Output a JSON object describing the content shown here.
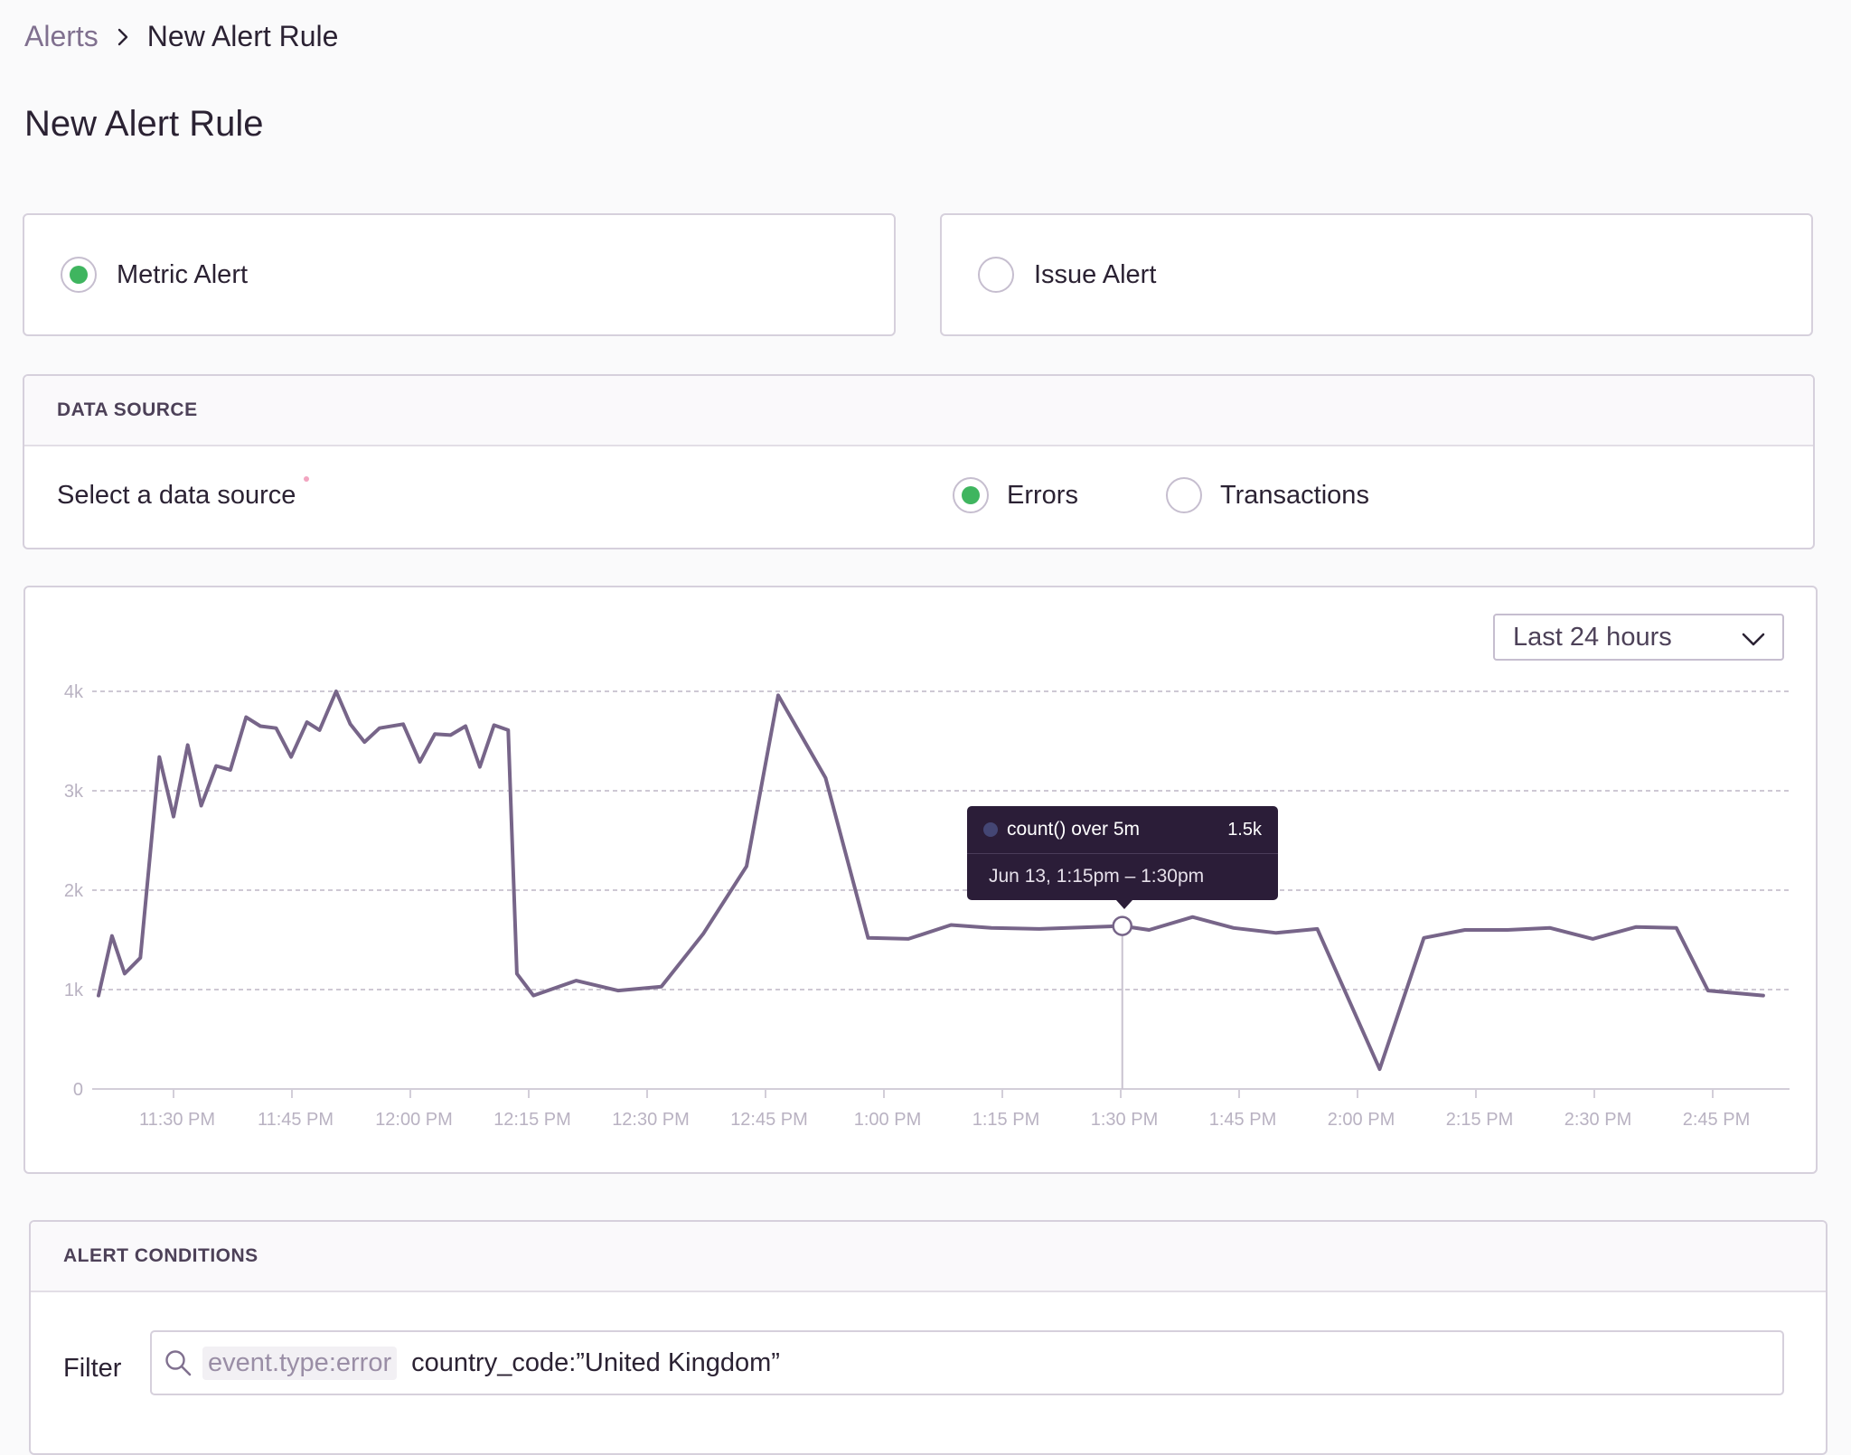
{
  "breadcrumb": {
    "parent": "Alerts",
    "current": "New Alert Rule"
  },
  "page_title": "New Alert Rule",
  "alert_types": [
    {
      "label": "Metric Alert",
      "selected": true
    },
    {
      "label": "Issue Alert",
      "selected": false
    }
  ],
  "data_source": {
    "header": "DATA SOURCE",
    "label": "Select a data source",
    "options": [
      {
        "label": "Errors",
        "selected": true
      },
      {
        "label": "Transactions",
        "selected": false
      }
    ]
  },
  "time_range": {
    "selected": "Last 24 hours"
  },
  "tooltip": {
    "series": "count() over 5m",
    "value": "1.5k",
    "range": "Jun 13, 1:15pm – 1:30pm"
  },
  "colors": {
    "accent_green": "#3fb55f",
    "line": "#776589",
    "tooltip_bg": "#2b1d38"
  },
  "chart_data": {
    "type": "line",
    "y_ticks": [
      "0",
      "1k",
      "2k",
      "3k",
      "4k"
    ],
    "ylim": [
      0,
      4000
    ],
    "x_ticks": [
      "11:30 PM",
      "11:45 PM",
      "12:00 PM",
      "12:15 PM",
      "12:30 PM",
      "12:45 PM",
      "1:00 PM",
      "1:15 PM",
      "1:30 PM",
      "1:45 PM",
      "2:00 PM",
      "2:15 PM",
      "2:30 PM",
      "2:45 PM"
    ],
    "x_unit": "minutes after 11:30 PM",
    "grid": true,
    "series": [
      {
        "highlight_index": 42,
        "points": [
          [
            -9.5,
            940
          ],
          [
            -7.8,
            1540
          ],
          [
            -6.2,
            1160
          ],
          [
            -4.2,
            1320
          ],
          [
            -1.8,
            3340
          ],
          [
            0,
            2740
          ],
          [
            1.8,
            3460
          ],
          [
            3.5,
            2850
          ],
          [
            5.4,
            3250
          ],
          [
            7.2,
            3210
          ],
          [
            9.2,
            3740
          ],
          [
            11,
            3650
          ],
          [
            13,
            3630
          ],
          [
            14.9,
            3340
          ],
          [
            16.9,
            3690
          ],
          [
            18.5,
            3610
          ],
          [
            20.6,
            4000
          ],
          [
            22.4,
            3670
          ],
          [
            24.2,
            3490
          ],
          [
            26.1,
            3630
          ],
          [
            29.1,
            3670
          ],
          [
            31.2,
            3290
          ],
          [
            33.1,
            3570
          ],
          [
            35.1,
            3560
          ],
          [
            37,
            3650
          ],
          [
            38.8,
            3240
          ],
          [
            40.6,
            3660
          ],
          [
            42.4,
            3610
          ],
          [
            43.5,
            1160
          ],
          [
            45.6,
            940
          ],
          [
            51,
            1090
          ],
          [
            56.3,
            990
          ],
          [
            61.8,
            1030
          ],
          [
            67.1,
            1560
          ],
          [
            72.6,
            2240
          ],
          [
            76.6,
            3960
          ],
          [
            82.6,
            3130
          ],
          [
            88,
            1520
          ],
          [
            93.1,
            1510
          ],
          [
            98.5,
            1650
          ],
          [
            103.6,
            1620
          ],
          [
            109.7,
            1610
          ],
          [
            120.2,
            1640
          ],
          [
            123.6,
            1600
          ],
          [
            129.1,
            1730
          ],
          [
            134.3,
            1620
          ],
          [
            139.7,
            1570
          ],
          [
            144.9,
            1610
          ],
          [
            152.8,
            200
          ],
          [
            158.4,
            1520
          ],
          [
            163.6,
            1600
          ],
          [
            169,
            1600
          ],
          [
            174.4,
            1620
          ],
          [
            179.8,
            1510
          ],
          [
            185.3,
            1630
          ],
          [
            190.4,
            1620
          ],
          [
            194.4,
            990
          ],
          [
            201.4,
            940
          ]
        ]
      }
    ]
  },
  "alert_conditions": {
    "header": "ALERT CONDITIONS",
    "filter_label": "Filter",
    "filter_token": "event.type:error",
    "filter_query": "country_code:”United Kingdom”"
  }
}
